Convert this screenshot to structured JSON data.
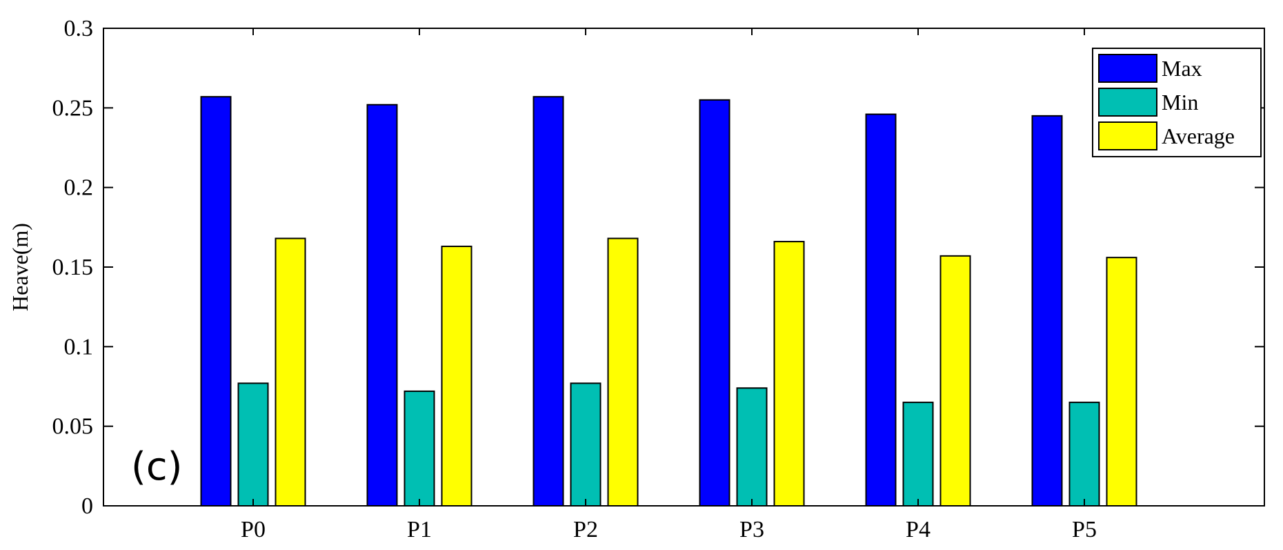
{
  "chart_data": {
    "type": "bar",
    "categories": [
      "P0",
      "P1",
      "P2",
      "P3",
      "P4",
      "P5"
    ],
    "series": [
      {
        "name": "Max",
        "values": [
          0.257,
          0.252,
          0.257,
          0.255,
          0.246,
          0.245
        ],
        "color": "#0000ff"
      },
      {
        "name": "Min",
        "values": [
          0.077,
          0.072,
          0.077,
          0.074,
          0.065,
          0.065
        ],
        "color": "#00bfb3"
      },
      {
        "name": "Average",
        "values": [
          0.168,
          0.163,
          0.168,
          0.166,
          0.157,
          0.156
        ],
        "color": "#ffff00"
      }
    ],
    "title": "",
    "xlabel": "",
    "ylabel": "Heave(m)",
    "ylim": [
      0,
      0.3
    ],
    "yticks": [
      "0",
      "0.05",
      "0.1",
      "0.15",
      "0.2",
      "0.25",
      "0.3"
    ],
    "grid": false,
    "legend_position": "top-right",
    "annotation": "(c)"
  }
}
